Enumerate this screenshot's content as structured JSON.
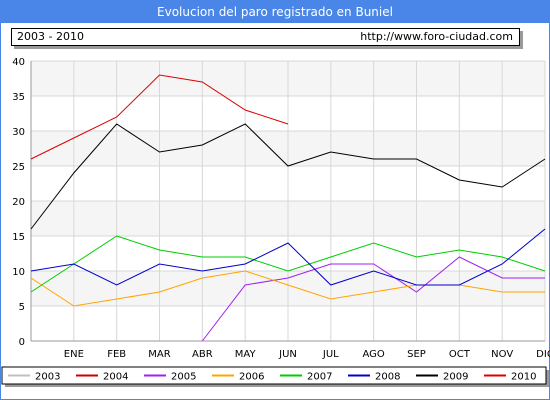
{
  "title": "Evolucion del paro registrado en Buniel",
  "period": "2003 - 2010",
  "website": "http://www.foro-ciudad.com",
  "chart_data": {
    "type": "line",
    "title": "Evolucion del paro registrado en Buniel",
    "categories": [
      "",
      "ENE",
      "FEB",
      "MAR",
      "ABR",
      "MAY",
      "JUN",
      "JUL",
      "AGO",
      "SEP",
      "OCT",
      "NOV",
      "DIC"
    ],
    "ylim": [
      0,
      40
    ],
    "yticks": [
      0,
      5,
      10,
      15,
      20,
      25,
      30,
      35,
      40
    ],
    "grid": true,
    "legend_position": "bottom",
    "series": [
      {
        "name": "2003",
        "color": "#c0c0c0",
        "values": [
          null,
          null,
          null,
          null,
          null,
          null,
          null,
          null,
          null,
          null,
          null,
          null,
          null
        ]
      },
      {
        "name": "2004",
        "color": "#cc0000",
        "values": [
          null,
          null,
          null,
          null,
          null,
          null,
          null,
          null,
          null,
          null,
          null,
          null,
          null
        ]
      },
      {
        "name": "2005",
        "color": "#a020f0",
        "values": [
          null,
          null,
          null,
          null,
          0,
          8,
          9,
          11,
          11,
          7,
          12,
          9,
          9
        ]
      },
      {
        "name": "2006",
        "color": "#ffa500",
        "values": [
          9,
          5,
          6,
          7,
          9,
          10,
          8,
          6,
          7,
          8,
          8,
          7,
          7
        ]
      },
      {
        "name": "2007",
        "color": "#00cc00",
        "values": [
          7,
          11,
          15,
          13,
          12,
          12,
          10,
          12,
          14,
          12,
          13,
          12,
          10
        ]
      },
      {
        "name": "2008",
        "color": "#0000cc",
        "values": [
          10,
          11,
          8,
          11,
          10,
          11,
          14,
          8,
          10,
          8,
          8,
          11,
          16
        ]
      },
      {
        "name": "2009",
        "color": "#000000",
        "values": [
          16,
          24,
          31,
          27,
          28,
          31,
          25,
          27,
          26,
          26,
          23,
          22,
          26
        ]
      },
      {
        "name": "2010",
        "color": "#dd0000",
        "values": [
          26,
          29,
          32,
          38,
          37,
          33,
          31,
          null,
          null,
          null,
          null,
          null,
          null
        ]
      }
    ]
  }
}
